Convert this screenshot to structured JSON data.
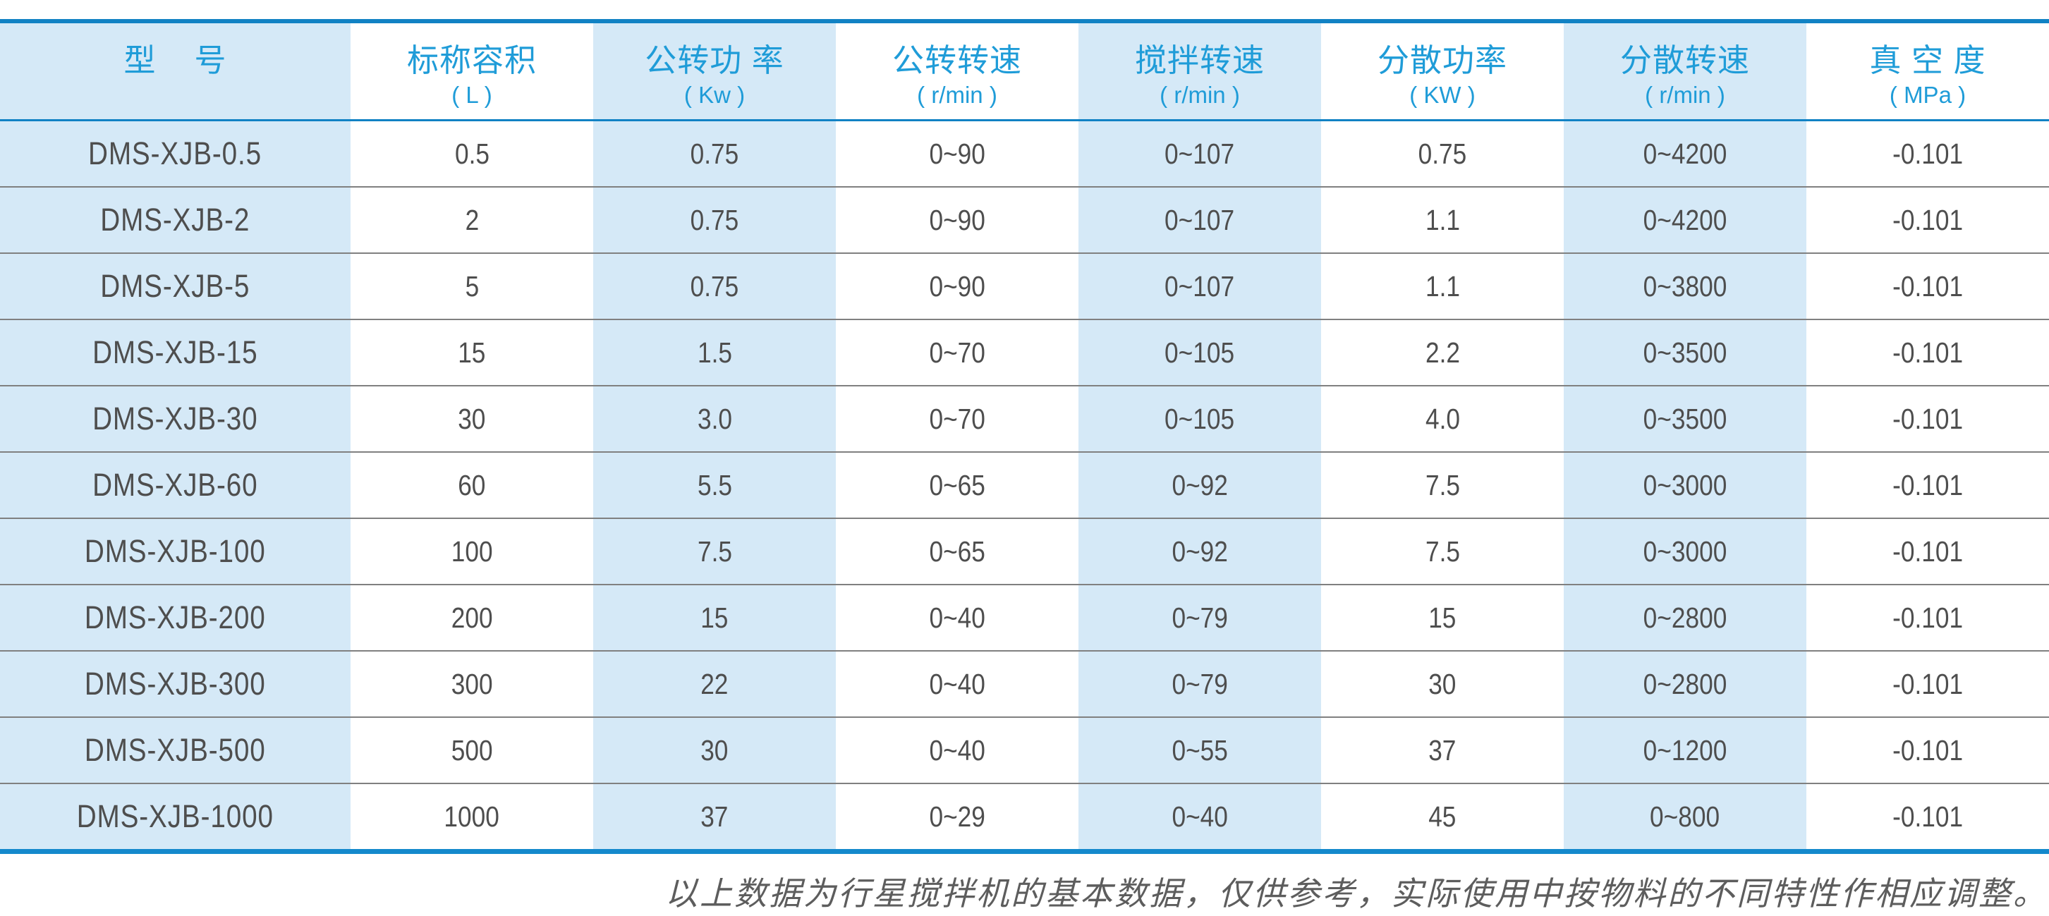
{
  "table": {
    "columns": [
      {
        "title": "型    号",
        "unit": ""
      },
      {
        "title": "标称容积",
        "unit": "( L )"
      },
      {
        "title": "公转功 率",
        "unit": "( Kw )"
      },
      {
        "title": "公转转速",
        "unit": "( r/min )"
      },
      {
        "title": "搅拌转速",
        "unit": "( r/min )"
      },
      {
        "title": "分散功率",
        "unit": "( KW )"
      },
      {
        "title": "分散转速",
        "unit": "( r/min )"
      },
      {
        "title": "真 空 度",
        "unit": "( MPa )"
      }
    ],
    "rows": [
      [
        "DMS-XJB-0.5",
        "0.5",
        "0.75",
        "0~90",
        "0~107",
        "0.75",
        "0~4200",
        "-0.101"
      ],
      [
        "DMS-XJB-2",
        "2",
        "0.75",
        "0~90",
        "0~107",
        "1.1",
        "0~4200",
        "-0.101"
      ],
      [
        "DMS-XJB-5",
        "5",
        "0.75",
        "0~90",
        "0~107",
        "1.1",
        "0~3800",
        "-0.101"
      ],
      [
        "DMS-XJB-15",
        "15",
        "1.5",
        "0~70",
        "0~105",
        "2.2",
        "0~3500",
        "-0.101"
      ],
      [
        "DMS-XJB-30",
        "30",
        "3.0",
        "0~70",
        "0~105",
        "4.0",
        "0~3500",
        "-0.101"
      ],
      [
        "DMS-XJB-60",
        "60",
        "5.5",
        "0~65",
        "0~92",
        "7.5",
        "0~3000",
        "-0.101"
      ],
      [
        "DMS-XJB-100",
        "100",
        "7.5",
        "0~65",
        "0~92",
        "7.5",
        "0~3000",
        "-0.101"
      ],
      [
        "DMS-XJB-200",
        "200",
        "15",
        "0~40",
        "0~79",
        "15",
        "0~2800",
        "-0.101"
      ],
      [
        "DMS-XJB-300",
        "300",
        "22",
        "0~40",
        "0~79",
        "30",
        "0~2800",
        "-0.101"
      ],
      [
        "DMS-XJB-500",
        "500",
        "30",
        "0~40",
        "0~55",
        "37",
        "0~1200",
        "-0.101"
      ],
      [
        "DMS-XJB-1000",
        "1000",
        "37",
        "0~29",
        "0~40",
        "45",
        "0~800",
        "-0.101"
      ]
    ]
  },
  "footer": {
    "note": "以上数据为行星搅拌机的基本数据，仅供参考，实际使用中按物料的不同特性作相应调整。"
  },
  "colors": {
    "accent_blue_border": "#1489cc",
    "header_text_blue": "#1f9cd8",
    "column_tint_blue": "#d5e9f7",
    "row_line_gray": "#808080",
    "data_text_gray": "#4e4e4e",
    "note_text_gray": "#5d5d5d"
  }
}
